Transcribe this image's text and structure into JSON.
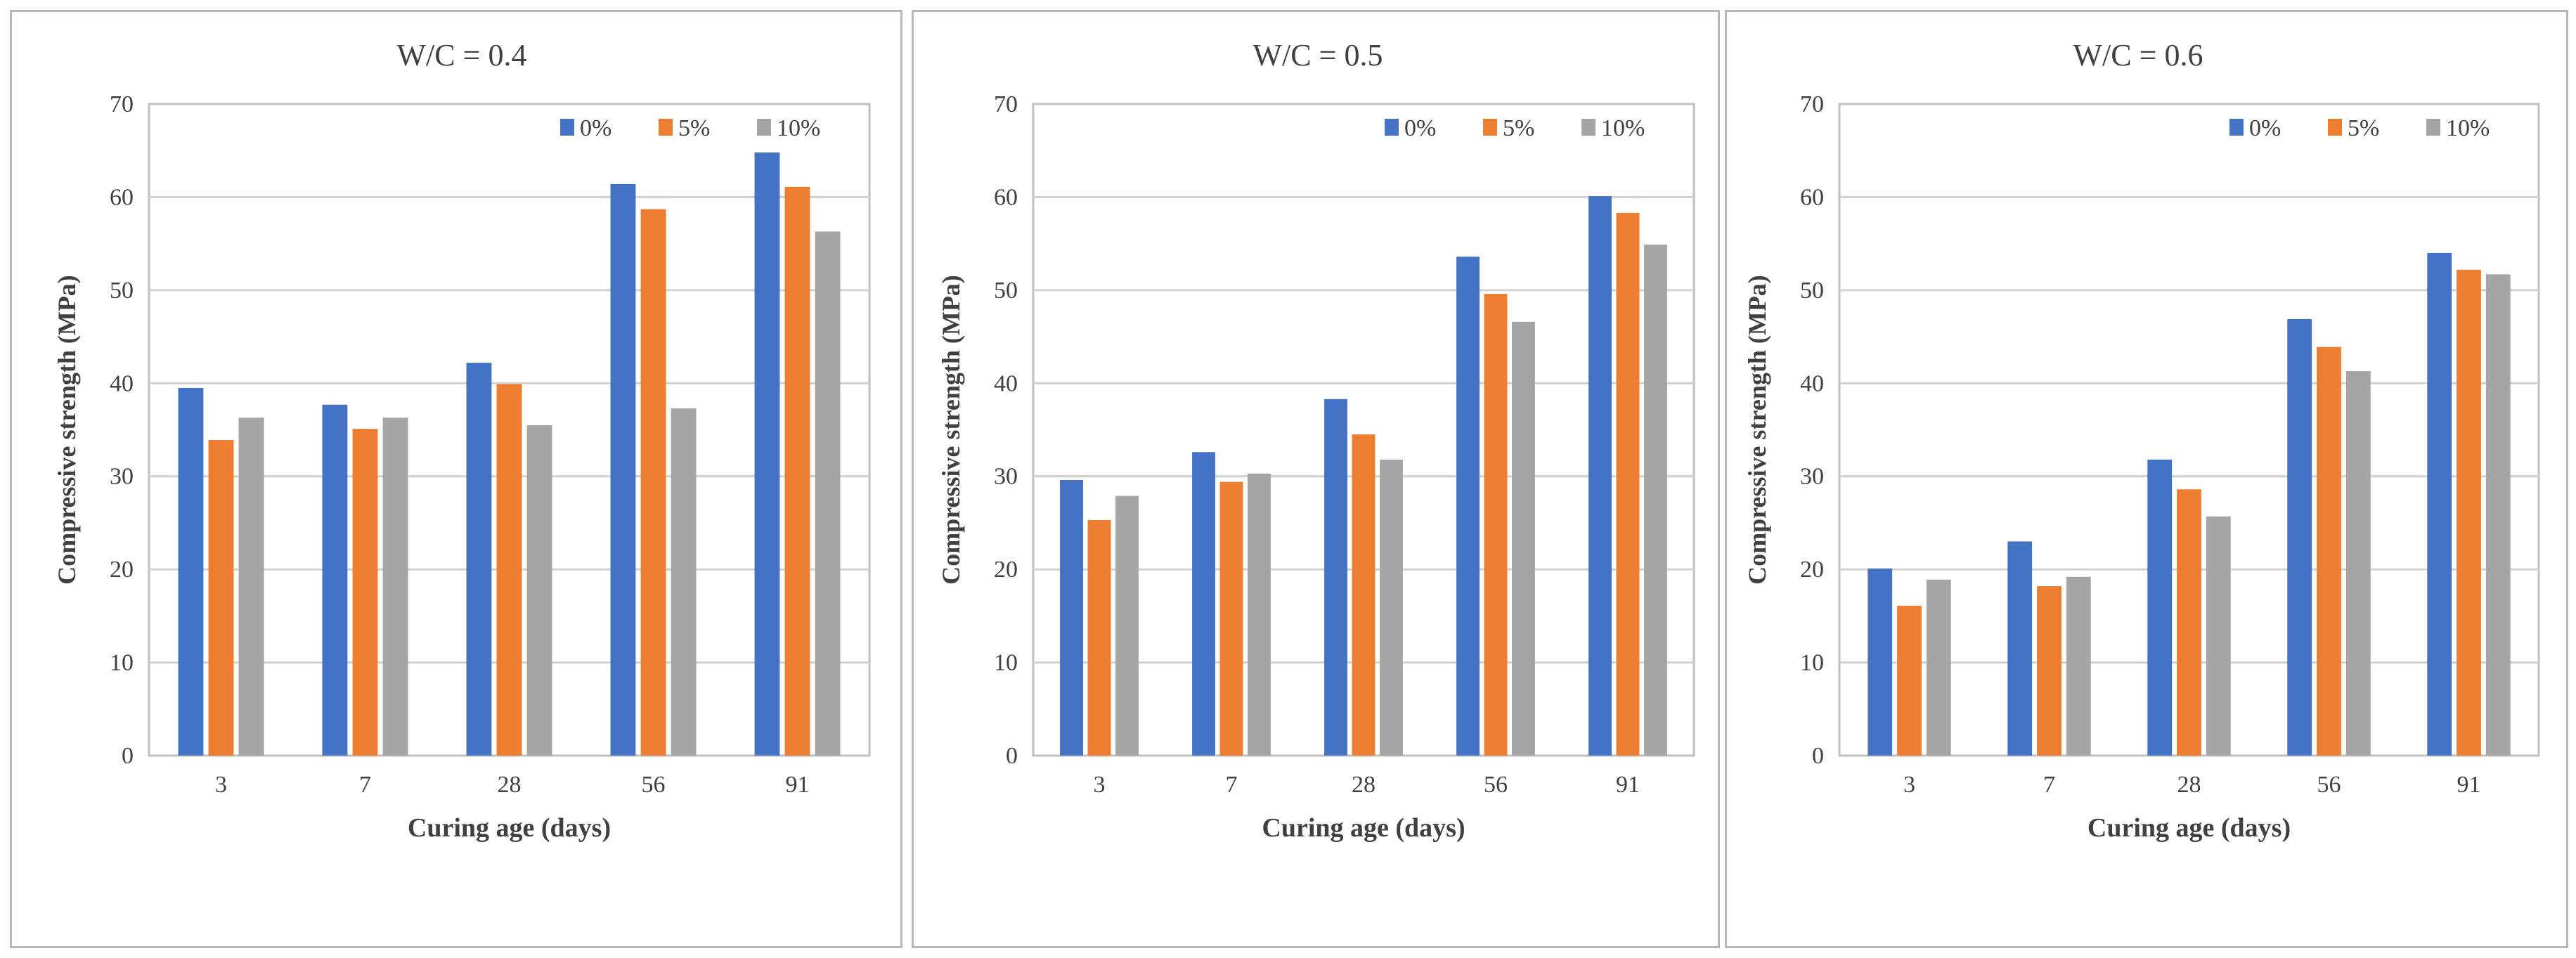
{
  "colors": {
    "s0": "#4472c4",
    "s5": "#ed7d31",
    "s10": "#a5a5a5",
    "grid": "#d0d0d0",
    "axis": "#bfbfbf",
    "text": "#404040"
  },
  "chart_data": [
    {
      "type": "bar",
      "title": "W/C = 0.4",
      "xlabel": "Curing age (days)",
      "ylabel": "Compressive strength (MPa)",
      "categories": [
        "3",
        "7",
        "28",
        "56",
        "91"
      ],
      "ylim": [
        0,
        70
      ],
      "yticks": [
        "0",
        "10",
        "20",
        "30",
        "40",
        "50",
        "60",
        "70"
      ],
      "grid": true,
      "legend_position": "top-right",
      "series": [
        {
          "name": "0%",
          "values": [
            39.5,
            37.7,
            42.2,
            61.4,
            64.8
          ]
        },
        {
          "name": "5%",
          "values": [
            33.9,
            35.1,
            39.9,
            58.7,
            61.1
          ]
        },
        {
          "name": "10%",
          "values": [
            36.3,
            36.3,
            35.5,
            37.3,
            56.3
          ]
        }
      ]
    },
    {
      "type": "bar",
      "title": "W/C = 0.5",
      "xlabel": "Curing age (days)",
      "ylabel": "Compressive strength (MPa)",
      "categories": [
        "3",
        "7",
        "28",
        "56",
        "91"
      ],
      "ylim": [
        0,
        70
      ],
      "yticks": [
        "0",
        "10",
        "20",
        "30",
        "40",
        "50",
        "60",
        "70"
      ],
      "grid": true,
      "legend_position": "top-right",
      "series": [
        {
          "name": "0%",
          "values": [
            29.6,
            32.6,
            38.3,
            53.6,
            60.1
          ]
        },
        {
          "name": "5%",
          "values": [
            25.3,
            29.4,
            34.5,
            49.6,
            58.3
          ]
        },
        {
          "name": "10%",
          "values": [
            27.9,
            30.3,
            31.8,
            46.6,
            54.9
          ]
        }
      ]
    },
    {
      "type": "bar",
      "title": "W/C = 0.6",
      "xlabel": "Curing age (days)",
      "ylabel": "Compressive strength (MPa)",
      "categories": [
        "3",
        "7",
        "28",
        "56",
        "91"
      ],
      "ylim": [
        0,
        70
      ],
      "yticks": [
        "0",
        "10",
        "20",
        "30",
        "40",
        "50",
        "60",
        "70"
      ],
      "grid": true,
      "legend_position": "top-right",
      "series": [
        {
          "name": "0%",
          "values": [
            20.1,
            23.0,
            31.8,
            46.9,
            54.0
          ]
        },
        {
          "name": "5%",
          "values": [
            16.1,
            18.2,
            28.6,
            43.9,
            52.2
          ]
        },
        {
          "name": "10%",
          "values": [
            18.9,
            19.2,
            25.7,
            41.3,
            51.7
          ]
        }
      ]
    }
  ]
}
